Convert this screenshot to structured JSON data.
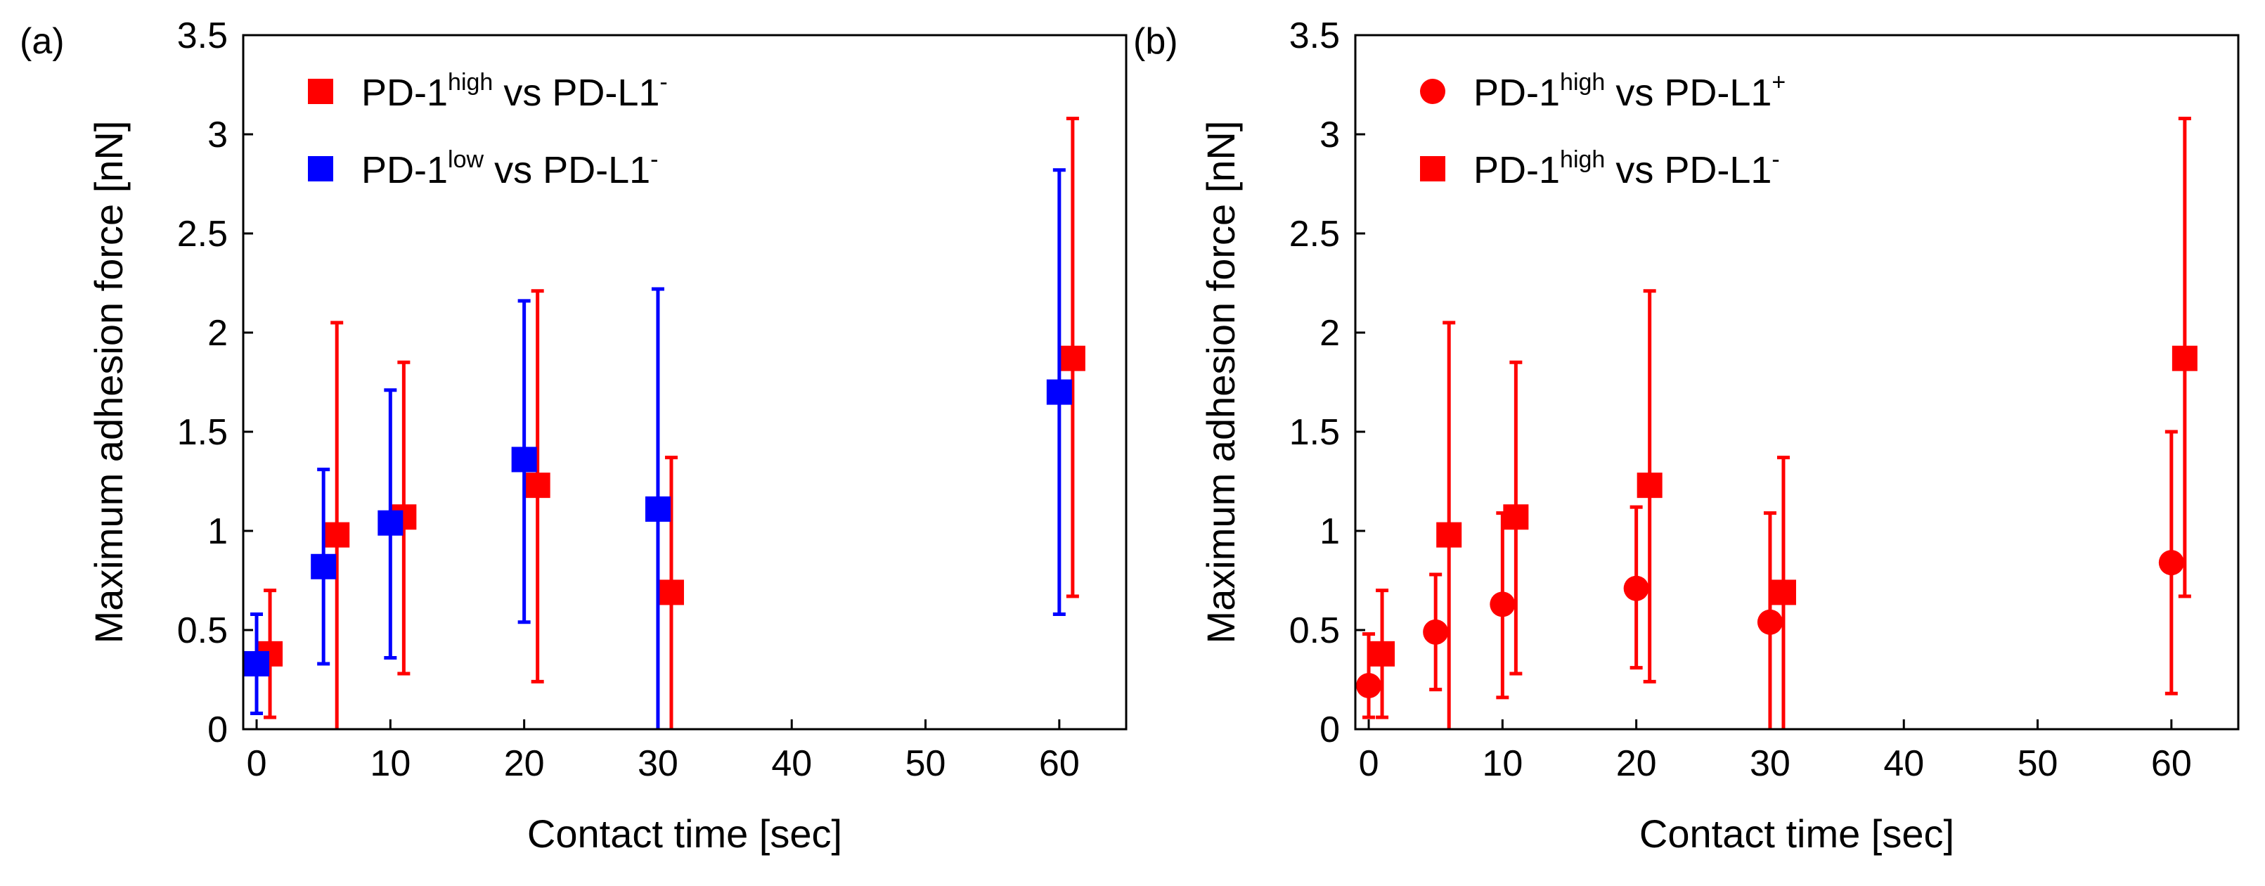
{
  "panel_labels": [
    "(a)",
    "(b)"
  ],
  "colors": {
    "red": "#ff0000",
    "blue": "#0000ff"
  },
  "chart_data": [
    {
      "type": "scatter",
      "panel": "(a)",
      "xlabel": "Contact time [sec]",
      "ylabel": "Maximum adhesion force [nN]",
      "xlim": [
        -1,
        65
      ],
      "ylim": [
        0,
        3.5
      ],
      "x_ticks": [
        {
          "value": 0,
          "label": "0"
        },
        {
          "value": 10,
          "label": "10"
        },
        {
          "value": 20,
          "label": "20"
        },
        {
          "value": 30,
          "label": "30"
        },
        {
          "value": 40,
          "label": "40"
        },
        {
          "value": 50,
          "label": "50"
        },
        {
          "value": 60,
          "label": "60"
        }
      ],
      "y_ticks": [
        {
          "value": 0,
          "label": "0"
        },
        {
          "value": 0.5,
          "label": "0.5"
        },
        {
          "value": 1,
          "label": "1"
        },
        {
          "value": 1.5,
          "label": "1.5"
        },
        {
          "value": 2,
          "label": "2"
        },
        {
          "value": 2.5,
          "label": "2.5"
        },
        {
          "value": 3,
          "label": "3"
        },
        {
          "value": 3.5,
          "label": "3.5"
        }
      ],
      "legend_position": "top-left",
      "series": [
        {
          "name": "PD-1high vs PD-L1-",
          "legend_base": "PD-1",
          "legend_sup1": "high",
          "legend_mid": " vs PD-L1",
          "legend_sup2": "-",
          "color": "#ff0000",
          "marker": "square",
          "points": [
            {
              "x": 1,
              "y": 0.38,
              "err_low": 0.06,
              "err_high": 0.7
            },
            {
              "x": 6,
              "y": 0.98,
              "err_low": 0,
              "err_high": 2.05
            },
            {
              "x": 11,
              "y": 1.07,
              "err_low": 0.28,
              "err_high": 1.85
            },
            {
              "x": 21,
              "y": 1.23,
              "err_low": 0.24,
              "err_high": 2.21
            },
            {
              "x": 31,
              "y": 0.69,
              "err_low": 0,
              "err_high": 1.37
            },
            {
              "x": 61,
              "y": 1.87,
              "err_low": 0.67,
              "err_high": 3.08
            }
          ]
        },
        {
          "name": "PD-1low vs PD-L1-",
          "legend_base": "PD-1",
          "legend_sup1": "low",
          "legend_mid": " vs PD-L1",
          "legend_sup2": "-",
          "color": "#0000ff",
          "marker": "square",
          "points": [
            {
              "x": 0,
              "y": 0.33,
              "err_low": 0.08,
              "err_high": 0.58
            },
            {
              "x": 5,
              "y": 0.82,
              "err_low": 0.33,
              "err_high": 1.31
            },
            {
              "x": 10,
              "y": 1.04,
              "err_low": 0.36,
              "err_high": 1.71
            },
            {
              "x": 20,
              "y": 1.36,
              "err_low": 0.54,
              "err_high": 2.16
            },
            {
              "x": 30,
              "y": 1.11,
              "err_low": 0,
              "err_high": 2.22
            },
            {
              "x": 60,
              "y": 1.7,
              "err_low": 0.58,
              "err_high": 2.82
            }
          ]
        }
      ]
    },
    {
      "type": "scatter",
      "panel": "(b)",
      "xlabel": "Contact time [sec]",
      "ylabel": "Maximum adhesion force [nN]",
      "xlim": [
        -1,
        65
      ],
      "ylim": [
        0,
        3.5
      ],
      "x_ticks": [
        {
          "value": 0,
          "label": "0"
        },
        {
          "value": 10,
          "label": "10"
        },
        {
          "value": 20,
          "label": "20"
        },
        {
          "value": 30,
          "label": "30"
        },
        {
          "value": 40,
          "label": "40"
        },
        {
          "value": 50,
          "label": "50"
        },
        {
          "value": 60,
          "label": "60"
        }
      ],
      "y_ticks": [
        {
          "value": 0,
          "label": "0"
        },
        {
          "value": 0.5,
          "label": "0.5"
        },
        {
          "value": 1,
          "label": "1"
        },
        {
          "value": 1.5,
          "label": "1.5"
        },
        {
          "value": 2,
          "label": "2"
        },
        {
          "value": 2.5,
          "label": "2.5"
        },
        {
          "value": 3,
          "label": "3"
        },
        {
          "value": 3.5,
          "label": "3.5"
        }
      ],
      "legend_position": "top-left",
      "series": [
        {
          "name": "PD-1high vs PD-L1+",
          "legend_base": "PD-1",
          "legend_sup1": "high",
          "legend_mid": " vs PD-L1",
          "legend_sup2": "+",
          "color": "#ff0000",
          "marker": "circle",
          "points": [
            {
              "x": 0,
              "y": 0.22,
              "err_low": 0.06,
              "err_high": 0.48
            },
            {
              "x": 5,
              "y": 0.49,
              "err_low": 0.2,
              "err_high": 0.78
            },
            {
              "x": 10,
              "y": 0.63,
              "err_low": 0.16,
              "err_high": 1.09
            },
            {
              "x": 20,
              "y": 0.71,
              "err_low": 0.31,
              "err_high": 1.12
            },
            {
              "x": 30,
              "y": 0.54,
              "err_low": 0,
              "err_high": 1.09
            },
            {
              "x": 60,
              "y": 0.84,
              "err_low": 0.18,
              "err_high": 1.5
            }
          ]
        },
        {
          "name": "PD-1high vs PD-L1-",
          "legend_base": "PD-1",
          "legend_sup1": "high",
          "legend_mid": " vs PD-L1",
          "legend_sup2": "-",
          "color": "#ff0000",
          "marker": "square",
          "points": [
            {
              "x": 1,
              "y": 0.38,
              "err_low": 0.06,
              "err_high": 0.7
            },
            {
              "x": 6,
              "y": 0.98,
              "err_low": 0,
              "err_high": 2.05
            },
            {
              "x": 11,
              "y": 1.07,
              "err_low": 0.28,
              "err_high": 1.85
            },
            {
              "x": 21,
              "y": 1.23,
              "err_low": 0.24,
              "err_high": 2.21
            },
            {
              "x": 31,
              "y": 0.69,
              "err_low": 0,
              "err_high": 1.37
            },
            {
              "x": 61,
              "y": 1.87,
              "err_low": 0.67,
              "err_high": 3.08
            }
          ]
        }
      ]
    }
  ]
}
